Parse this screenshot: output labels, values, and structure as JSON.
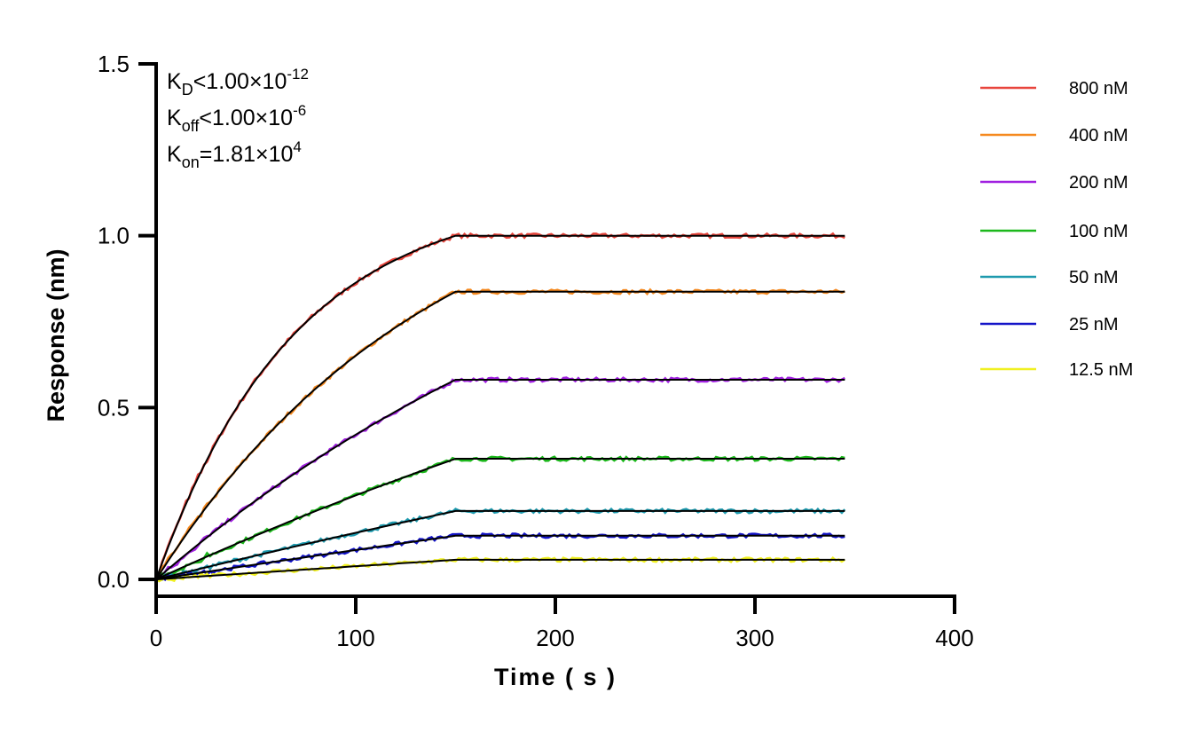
{
  "chart_data": {
    "type": "line",
    "xlabel": "Time ( s )",
    "ylabel": "Response (nm)",
    "xlim": [
      0,
      400
    ],
    "ylim": [
      0,
      1.5
    ],
    "x_ticks": [
      "0",
      "100",
      "200",
      "300",
      "400"
    ],
    "y_ticks": [
      "0.0",
      "0.5",
      "1.0",
      "1.5"
    ],
    "grid": false,
    "legend_position": "right",
    "annotations": {
      "kd": {
        "label": "K",
        "sub": "D",
        "rel": "<",
        "mant": "1.00×10",
        "exp": "-12"
      },
      "koff": {
        "label": "K",
        "sub": "off",
        "rel": "<",
        "mant": "1.00×10",
        "exp": "-6"
      },
      "kon": {
        "label": "K",
        "sub": "on",
        "rel": "=",
        "mant": "1.81×10",
        "exp": "4"
      }
    },
    "kon_value": 18100,
    "association_end": 150,
    "dissociation_end": 345,
    "fit_color": "#000000",
    "x": [
      0,
      50,
      100,
      150,
      250,
      345
    ],
    "series": [
      {
        "name": "800 nM",
        "conc_nM": 800,
        "color": "#e8453c",
        "values": [
          0,
          0.581,
          0.863,
          1.0,
          1.0,
          1.0
        ]
      },
      {
        "name": "400 nM",
        "conc_nM": 400,
        "color": "#f5891f",
        "values": [
          0,
          0.384,
          0.651,
          0.837,
          0.837,
          0.837
        ]
      },
      {
        "name": "200 nM",
        "conc_nM": 200,
        "color": "#a020e0",
        "values": [
          0,
          0.23,
          0.421,
          0.581,
          0.581,
          0.581
        ]
      },
      {
        "name": "100 nM",
        "conc_nM": 100,
        "color": "#1cb81c",
        "values": [
          0,
          0.128,
          0.244,
          0.351,
          0.351,
          0.351
        ]
      },
      {
        "name": "50 nM",
        "conc_nM": 50,
        "color": "#1e9aae",
        "values": [
          0,
          0.069,
          0.136,
          0.199,
          0.199,
          0.199
        ]
      },
      {
        "name": "25 nM",
        "conc_nM": 25,
        "color": "#1414c8",
        "values": [
          0,
          0.043,
          0.086,
          0.127,
          0.127,
          0.127
        ]
      },
      {
        "name": "12.5 nM",
        "conc_nM": 12.5,
        "color": "#f0f020",
        "values": [
          0,
          0.019,
          0.038,
          0.057,
          0.057,
          0.057
        ]
      }
    ]
  }
}
